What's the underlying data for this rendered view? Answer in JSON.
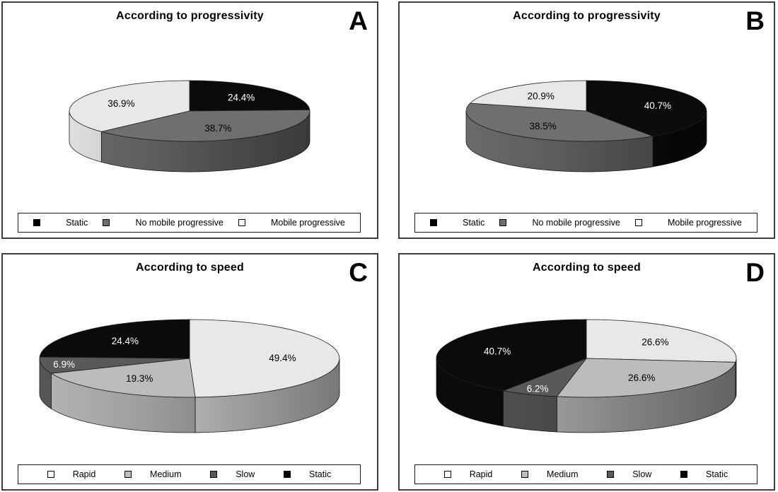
{
  "figure": {
    "background": "#ffffff",
    "panel_border_color": "#3d3d3d",
    "text_color": "#000000"
  },
  "chart_data": [
    {
      "type": "pie",
      "panel": "A",
      "title": "According to progressivity",
      "style": "3d-pie",
      "start_angle_deg": 0,
      "direction": "clockwise",
      "labels": [
        "Static",
        "No mobile progressive",
        "Mobile progressive"
      ],
      "values": [
        24.4,
        38.7,
        36.9
      ],
      "labels_display": [
        "24.4%",
        "38.7%",
        "36.9%"
      ],
      "colors": [
        "#0b0b0b",
        "#6f6f6f",
        "#e8e8e8"
      ],
      "legend_position": "bottom",
      "legend": [
        {
          "label": "Static",
          "swatch": "#000000"
        },
        {
          "label": "No mobile progressive",
          "swatch": "#6f6f6f"
        },
        {
          "label": "Mobile progressive",
          "swatch": "#ffffff"
        }
      ]
    },
    {
      "type": "pie",
      "panel": "B",
      "title": "According to progressivity",
      "style": "3d-pie",
      "start_angle_deg": 0,
      "direction": "clockwise",
      "labels": [
        "Static",
        "No mobile progressive",
        "Mobile progressive"
      ],
      "values": [
        40.7,
        38.5,
        20.9
      ],
      "labels_display": [
        "40.7%",
        "38.5%",
        "20.9%"
      ],
      "colors": [
        "#0b0b0b",
        "#6f6f6f",
        "#e8e8e8"
      ],
      "legend_position": "bottom",
      "legend": [
        {
          "label": "Static",
          "swatch": "#000000"
        },
        {
          "label": "No mobile progressive",
          "swatch": "#6f6f6f"
        },
        {
          "label": "Mobile progressive",
          "swatch": "#ffffff"
        }
      ]
    },
    {
      "type": "pie",
      "panel": "C",
      "title": "According to speed",
      "style": "3d-pie",
      "start_angle_deg": 0,
      "direction": "clockwise",
      "labels": [
        "Rapid",
        "Medium",
        "Slow",
        "Static"
      ],
      "values": [
        49.4,
        19.3,
        6.9,
        24.4
      ],
      "labels_display": [
        "49.4%",
        "19.3%",
        "6.9%",
        "24.4%"
      ],
      "colors": [
        "#e8e8e8",
        "#bcbcbc",
        "#595959",
        "#0b0b0b"
      ],
      "legend_position": "bottom",
      "legend": [
        {
          "label": "Rapid",
          "swatch": "#ffffff"
        },
        {
          "label": "Medium",
          "swatch": "#bcbcbc"
        },
        {
          "label": "Slow",
          "swatch": "#595959"
        },
        {
          "label": "Static",
          "swatch": "#000000"
        }
      ]
    },
    {
      "type": "pie",
      "panel": "D",
      "title": "According to speed",
      "style": "3d-pie",
      "start_angle_deg": 0,
      "direction": "clockwise",
      "labels": [
        "Rapid",
        "Medium",
        "Slow",
        "Static"
      ],
      "values": [
        26.6,
        26.6,
        6.2,
        40.7
      ],
      "labels_display": [
        "26.6%",
        "26.6%",
        "6.2%",
        "40.7%"
      ],
      "colors": [
        "#e8e8e8",
        "#bcbcbc",
        "#595959",
        "#0b0b0b"
      ],
      "legend_position": "bottom",
      "legend": [
        {
          "label": "Rapid",
          "swatch": "#ffffff"
        },
        {
          "label": "Medium",
          "swatch": "#bcbcbc"
        },
        {
          "label": "Slow",
          "swatch": "#595959"
        },
        {
          "label": "Static",
          "swatch": "#000000"
        }
      ]
    }
  ]
}
